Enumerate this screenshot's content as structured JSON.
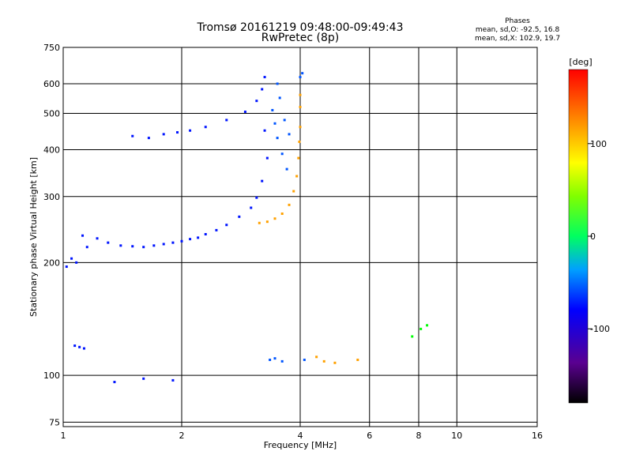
{
  "chart_data": {
    "type": "scatter",
    "title": "Tromsø 20161219 09:48:00-09:49:43",
    "subtitle": "RwPretec (8p)",
    "xlabel": "Frequency [MHz]",
    "ylabel": "Stationary phase Virtual Height [km]",
    "x_scale": "log",
    "y_scale": "log",
    "xlim": [
      1,
      16
    ],
    "ylim": [
      73,
      750
    ],
    "x_ticks": [
      1,
      2,
      4,
      6,
      8,
      10,
      16
    ],
    "y_ticks": [
      75,
      100,
      200,
      300,
      400,
      500,
      600,
      750
    ],
    "grid": true,
    "phases_box": {
      "title": "Phases",
      "o_line": "mean, sd,O: -92.5, 16.8",
      "x_line": "mean, sd,X: 102.9, 19.7"
    },
    "colorbar": {
      "label": "[deg]",
      "range": [
        -180,
        180
      ],
      "ticks": [
        100,
        0,
        -100
      ]
    },
    "series": [
      {
        "phase_deg": -130,
        "points": [
          [
            1.02,
            195
          ],
          [
            1.05,
            205
          ],
          [
            1.08,
            200
          ],
          [
            1.12,
            236
          ],
          [
            1.15,
            220
          ],
          [
            1.22,
            232
          ],
          [
            1.3,
            226
          ],
          [
            1.4,
            222
          ],
          [
            1.5,
            221
          ],
          [
            1.6,
            220
          ],
          [
            1.7,
            222
          ],
          [
            1.8,
            224
          ],
          [
            1.9,
            226
          ],
          [
            2.0,
            228
          ],
          [
            2.1,
            231
          ],
          [
            2.2,
            233
          ],
          [
            2.3,
            238
          ],
          [
            2.45,
            244
          ],
          [
            2.6,
            252
          ],
          [
            2.8,
            265
          ],
          [
            3.0,
            280
          ],
          [
            3.1,
            298
          ],
          [
            3.2,
            330
          ],
          [
            3.3,
            380
          ],
          [
            3.25,
            450
          ],
          [
            1.5,
            435
          ],
          [
            1.65,
            430
          ],
          [
            1.8,
            440
          ],
          [
            1.95,
            445
          ],
          [
            2.1,
            450
          ],
          [
            2.3,
            460
          ],
          [
            2.6,
            480
          ],
          [
            2.9,
            505
          ],
          [
            3.1,
            540
          ],
          [
            3.2,
            580
          ],
          [
            3.25,
            625
          ],
          [
            1.07,
            120
          ],
          [
            1.1,
            119
          ],
          [
            1.13,
            118
          ],
          [
            1.6,
            98
          ],
          [
            1.9,
            97
          ],
          [
            1.35,
            96
          ]
        ]
      },
      {
        "phase_deg": -110,
        "points": [
          [
            3.4,
            510
          ],
          [
            3.45,
            470
          ],
          [
            3.5,
            430
          ],
          [
            3.6,
            390
          ],
          [
            3.7,
            355
          ],
          [
            3.5,
            600
          ],
          [
            3.55,
            550
          ],
          [
            3.65,
            480
          ],
          [
            3.75,
            440
          ],
          [
            4.0,
            625
          ],
          [
            4.05,
            640
          ],
          [
            3.35,
            110
          ],
          [
            3.45,
            111
          ],
          [
            3.6,
            109
          ],
          [
            4.1,
            110
          ]
        ]
      },
      {
        "phase_deg": 130,
        "points": [
          [
            3.15,
            255
          ],
          [
            3.3,
            257
          ],
          [
            3.45,
            262
          ],
          [
            3.6,
            270
          ],
          [
            3.75,
            285
          ],
          [
            3.85,
            310
          ],
          [
            3.92,
            340
          ],
          [
            3.96,
            380
          ],
          [
            3.98,
            420
          ],
          [
            4.0,
            460
          ],
          [
            4.0,
            520
          ],
          [
            4.0,
            560
          ],
          [
            4.6,
            109
          ],
          [
            4.9,
            108
          ],
          [
            5.6,
            110
          ],
          [
            4.4,
            112
          ]
        ]
      },
      {
        "phase_deg": 20,
        "points": [
          [
            7.7,
            127
          ],
          [
            8.1,
            133
          ],
          [
            8.4,
            136
          ]
        ]
      }
    ]
  }
}
